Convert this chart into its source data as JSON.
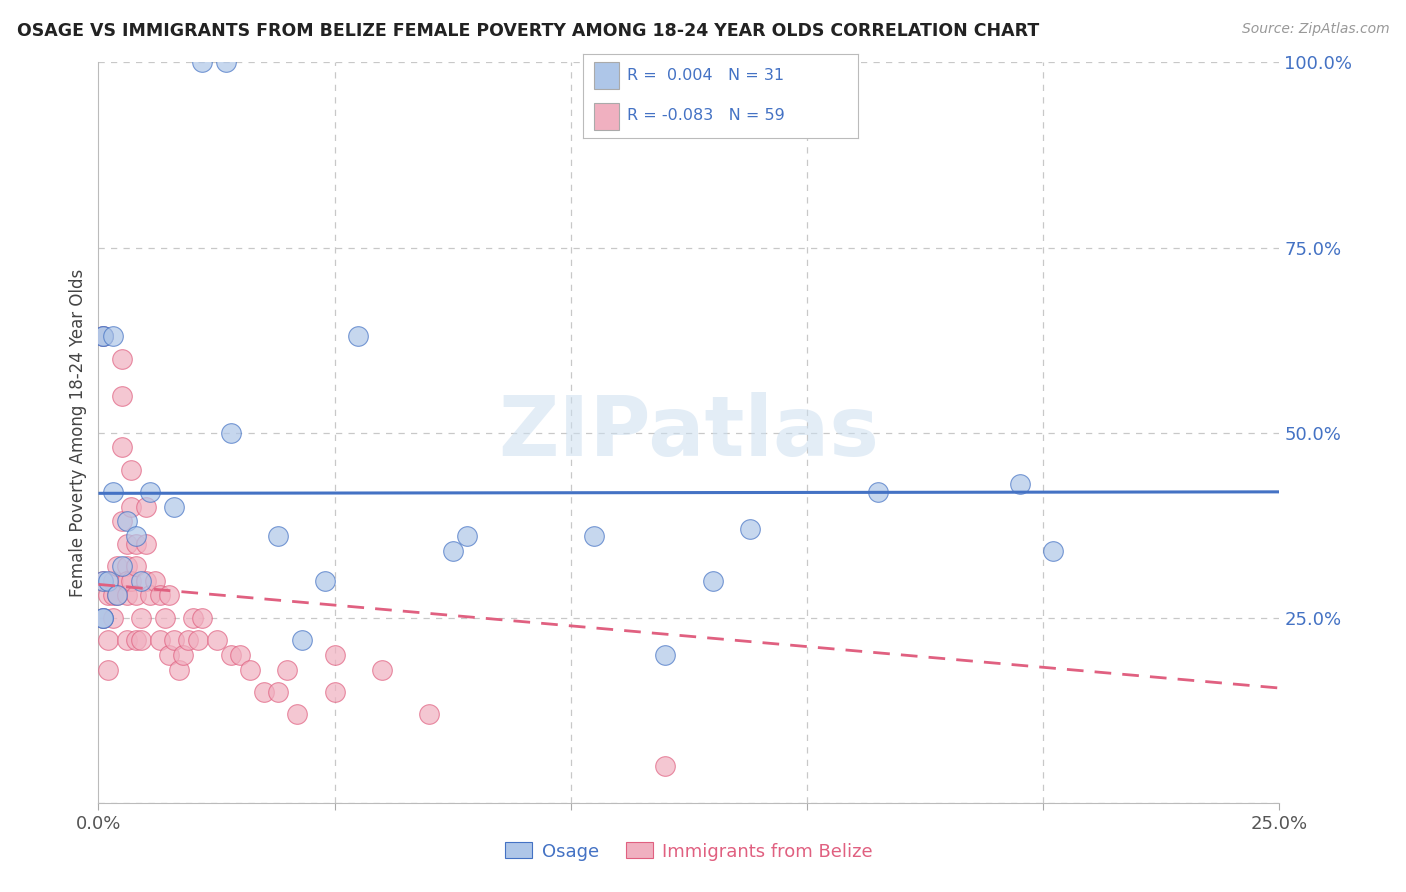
{
  "title": "OSAGE VS IMMIGRANTS FROM BELIZE FEMALE POVERTY AMONG 18-24 YEAR OLDS CORRELATION CHART",
  "source": "Source: ZipAtlas.com",
  "ylabel": "Female Poverty Among 18-24 Year Olds",
  "xlim": [
    0.0,
    0.25
  ],
  "ylim": [
    0.0,
    1.0
  ],
  "xticks": [
    0.0,
    0.05,
    0.1,
    0.15,
    0.2,
    0.25
  ],
  "yticks": [
    0.0,
    0.25,
    0.5,
    0.75,
    1.0
  ],
  "yticklabels_right": [
    "",
    "25.0%",
    "50.0%",
    "75.0%",
    "100.0%"
  ],
  "osage_color": "#aec6e8",
  "belize_color": "#f0b0c0",
  "osage_R": 0.004,
  "osage_N": 31,
  "belize_R": -0.083,
  "belize_N": 59,
  "trend_osage_color": "#4472c4",
  "trend_belize_color": "#e06080",
  "legend_R_color": "#4472c4",
  "watermark": "ZIPatlas",
  "background_color": "#ffffff",
  "grid_color": "#c8c8c8",
  "osage_x": [
    0.022,
    0.027,
    0.001,
    0.001,
    0.001,
    0.002,
    0.004,
    0.005,
    0.003,
    0.006,
    0.028,
    0.038,
    0.008,
    0.009,
    0.011,
    0.016,
    0.055,
    0.001,
    0.001,
    0.105,
    0.13,
    0.165,
    0.195,
    0.078,
    0.048,
    0.043,
    0.138,
    0.202,
    0.12,
    0.003,
    0.075
  ],
  "osage_y": [
    1.0,
    1.0,
    0.63,
    0.63,
    0.3,
    0.3,
    0.28,
    0.32,
    0.42,
    0.38,
    0.5,
    0.36,
    0.36,
    0.3,
    0.42,
    0.4,
    0.63,
    0.25,
    0.25,
    0.36,
    0.3,
    0.42,
    0.43,
    0.36,
    0.3,
    0.22,
    0.37,
    0.34,
    0.2,
    0.63,
    0.34
  ],
  "belize_x": [
    0.001,
    0.001,
    0.001,
    0.002,
    0.002,
    0.002,
    0.003,
    0.003,
    0.003,
    0.004,
    0.004,
    0.005,
    0.005,
    0.005,
    0.005,
    0.006,
    0.006,
    0.006,
    0.006,
    0.006,
    0.007,
    0.007,
    0.007,
    0.008,
    0.008,
    0.008,
    0.008,
    0.009,
    0.009,
    0.01,
    0.01,
    0.01,
    0.011,
    0.012,
    0.013,
    0.013,
    0.014,
    0.015,
    0.015,
    0.016,
    0.017,
    0.018,
    0.019,
    0.02,
    0.021,
    0.022,
    0.025,
    0.028,
    0.03,
    0.032,
    0.035,
    0.038,
    0.04,
    0.042,
    0.05,
    0.05,
    0.06,
    0.07,
    0.12
  ],
  "belize_y": [
    0.63,
    0.3,
    0.25,
    0.28,
    0.22,
    0.18,
    0.3,
    0.28,
    0.25,
    0.32,
    0.28,
    0.6,
    0.55,
    0.48,
    0.38,
    0.35,
    0.32,
    0.3,
    0.28,
    0.22,
    0.45,
    0.4,
    0.3,
    0.35,
    0.32,
    0.28,
    0.22,
    0.25,
    0.22,
    0.4,
    0.35,
    0.3,
    0.28,
    0.3,
    0.28,
    0.22,
    0.25,
    0.28,
    0.2,
    0.22,
    0.18,
    0.2,
    0.22,
    0.25,
    0.22,
    0.25,
    0.22,
    0.2,
    0.2,
    0.18,
    0.15,
    0.15,
    0.18,
    0.12,
    0.2,
    0.15,
    0.18,
    0.12,
    0.05
  ],
  "osage_trend_y0": 0.418,
  "osage_trend_y1": 0.42,
  "belize_trend_y0": 0.295,
  "belize_trend_y1": 0.155
}
